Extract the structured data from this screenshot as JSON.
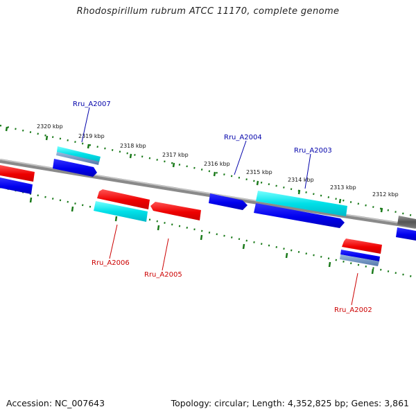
{
  "title": "Rhodospirillum rubrum ATCC 11170, complete genome",
  "footer": {
    "accession": "Accession: NC_007643",
    "summary": "Topology: circular; Length: 4,352,825 bp; Genes: 3,861"
  },
  "scale_labels": [
    "2320 kbp",
    "2319 kbp",
    "2318 kbp",
    "2317 kbp",
    "2316 kbp",
    "2315 kbp",
    "2314 kbp",
    "2313 kbp",
    "2312 kbp"
  ],
  "genes": {
    "a2007": "Rru_A2007",
    "a2006": "Rru_A2006",
    "a2005": "Rru_A2005",
    "a2004": "Rru_A2004",
    "a2003": "Rru_A2003",
    "a2002": "Rru_A2002"
  },
  "colors": {
    "forward_strand": "#0000ee",
    "reverse_strand": "#ee0000",
    "cyan_feature": "#00e0e8",
    "backbone": "#808080",
    "tick": "#1a7a1a"
  }
}
